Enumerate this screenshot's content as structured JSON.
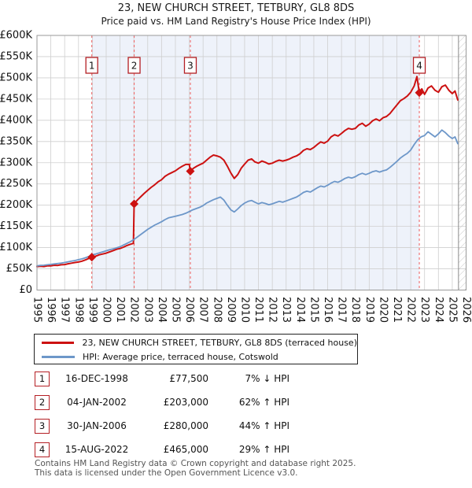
{
  "title": "23, NEW CHURCH STREET, TETBURY, GL8 8DS",
  "subtitle": "Price paid vs. HM Land Registry's House Price Index (HPI)",
  "legend": {
    "items": [
      {
        "label": "23, NEW CHURCH STREET, TETBURY, GL8 8DS (terraced house)",
        "color": "#cc1111"
      },
      {
        "label": "HPI: Average price, terraced house, Cotswold",
        "color": "#6d97c9"
      }
    ]
  },
  "transactions": [
    {
      "badge": "1",
      "date": "16-DEC-1998",
      "price": "£77,500",
      "vs_hpi": "7% ↓ HPI",
      "year": 1998.96,
      "value_k": 77.5
    },
    {
      "badge": "2",
      "date": "04-JAN-2002",
      "price": "£203,000",
      "vs_hpi": "62% ↑ HPI",
      "year": 2002.02,
      "value_k": 203
    },
    {
      "badge": "3",
      "date": "30-JAN-2006",
      "price": "£280,000",
      "vs_hpi": "44% ↑ HPI",
      "year": 2006.08,
      "value_k": 280
    },
    {
      "badge": "4",
      "date": "15-AUG-2022",
      "price": "£465,000",
      "vs_hpi": "29% ↑ HPI",
      "year": 2022.62,
      "value_k": 465
    }
  ],
  "footer": [
    "Contains HM Land Registry data © Crown copyright and database right 2025.",
    "This data is licensed under the Open Government Licence v3.0."
  ],
  "chart_data": {
    "type": "line",
    "unit": "GBP thousands",
    "x_range": [
      1995,
      2026
    ],
    "y_range_k": [
      0,
      600
    ],
    "y_ticks_k": [
      0,
      50,
      100,
      150,
      200,
      250,
      300,
      350,
      400,
      450,
      500,
      550,
      600
    ],
    "y_tick_labels": [
      "£0",
      "£50K",
      "£100K",
      "£150K",
      "£200K",
      "£250K",
      "£300K",
      "£350K",
      "£400K",
      "£450K",
      "£500K",
      "£550K",
      "£600K"
    ],
    "x_ticks": [
      1995,
      1996,
      1997,
      1998,
      1999,
      2000,
      2001,
      2002,
      2003,
      2004,
      2005,
      2006,
      2007,
      2008,
      2009,
      2010,
      2011,
      2012,
      2013,
      2014,
      2015,
      2016,
      2017,
      2018,
      2019,
      2020,
      2021,
      2022,
      2023,
      2024,
      2025,
      2026
    ],
    "grid": true,
    "legend_position": "below",
    "shade_region": [
      1998.96,
      2022.62
    ],
    "shade_color": "#eef2fa",
    "future_hatch_start": 2025.45,
    "dashed_line_color": "#ee6a6a",
    "marker_color": "#cc1111",
    "sale_markers": [
      {
        "n": "1",
        "x": 1998.96,
        "y_k": 77.5
      },
      {
        "n": "2",
        "x": 2002.02,
        "y_k": 203
      },
      {
        "n": "3",
        "x": 2006.08,
        "y_k": 280
      },
      {
        "n": "4",
        "x": 2022.62,
        "y_k": 465
      }
    ],
    "series": [
      {
        "name": "23, NEW CHURCH STREET, TETBURY, GL8 8DS (terraced house)",
        "color": "#cc1111",
        "width": 2,
        "points": [
          [
            1995,
            55
          ],
          [
            1995.25,
            56
          ],
          [
            1995.5,
            55.5
          ],
          [
            1995.75,
            57
          ],
          [
            1996,
            57
          ],
          [
            1996.25,
            58.5
          ],
          [
            1996.5,
            58
          ],
          [
            1996.75,
            59.5
          ],
          [
            1997,
            60
          ],
          [
            1997.25,
            62
          ],
          [
            1997.5,
            63.5
          ],
          [
            1997.75,
            65
          ],
          [
            1998,
            66
          ],
          [
            1998.25,
            68
          ],
          [
            1998.5,
            71
          ],
          [
            1998.75,
            74.5
          ],
          [
            1998.96,
            77.5
          ],
          [
            1999.25,
            80
          ],
          [
            1999.5,
            83
          ],
          [
            1999.75,
            85
          ],
          [
            2000,
            87
          ],
          [
            2000.25,
            90
          ],
          [
            2000.5,
            93
          ],
          [
            2000.75,
            96
          ],
          [
            2001,
            98
          ],
          [
            2001.25,
            101
          ],
          [
            2001.5,
            105
          ],
          [
            2001.75,
            108
          ],
          [
            2001.97,
            110
          ],
          [
            2002.02,
            203
          ],
          [
            2002.25,
            212
          ],
          [
            2002.5,
            220
          ],
          [
            2002.75,
            228
          ],
          [
            2003,
            235
          ],
          [
            2003.25,
            242
          ],
          [
            2003.5,
            248
          ],
          [
            2003.75,
            255
          ],
          [
            2004,
            260
          ],
          [
            2004.25,
            268
          ],
          [
            2004.5,
            273
          ],
          [
            2004.75,
            277
          ],
          [
            2005,
            281
          ],
          [
            2005.25,
            287
          ],
          [
            2005.5,
            292
          ],
          [
            2005.75,
            296
          ],
          [
            2006,
            296
          ],
          [
            2006.08,
            280
          ],
          [
            2006.3,
            287
          ],
          [
            2006.55,
            292
          ],
          [
            2006.8,
            296
          ],
          [
            2007,
            299
          ],
          [
            2007.25,
            306
          ],
          [
            2007.5,
            313
          ],
          [
            2007.75,
            318
          ],
          [
            2008,
            316
          ],
          [
            2008.25,
            313
          ],
          [
            2008.5,
            306
          ],
          [
            2008.75,
            292
          ],
          [
            2009,
            276
          ],
          [
            2009.25,
            263
          ],
          [
            2009.5,
            272
          ],
          [
            2009.75,
            287
          ],
          [
            2010,
            297
          ],
          [
            2010.25,
            306
          ],
          [
            2010.5,
            309
          ],
          [
            2010.75,
            302
          ],
          [
            2011,
            299
          ],
          [
            2011.25,
            304
          ],
          [
            2011.5,
            301
          ],
          [
            2011.75,
            297
          ],
          [
            2012,
            299
          ],
          [
            2012.25,
            303
          ],
          [
            2012.5,
            306
          ],
          [
            2012.75,
            304
          ],
          [
            2013,
            306
          ],
          [
            2013.25,
            309
          ],
          [
            2013.5,
            313
          ],
          [
            2013.75,
            316
          ],
          [
            2014,
            321
          ],
          [
            2014.25,
            329
          ],
          [
            2014.5,
            333
          ],
          [
            2014.75,
            331
          ],
          [
            2015,
            336
          ],
          [
            2015.25,
            343
          ],
          [
            2015.5,
            349
          ],
          [
            2015.75,
            346
          ],
          [
            2016,
            351
          ],
          [
            2016.25,
            361
          ],
          [
            2016.5,
            366
          ],
          [
            2016.75,
            363
          ],
          [
            2017,
            369
          ],
          [
            2017.25,
            376
          ],
          [
            2017.5,
            381
          ],
          [
            2017.75,
            379
          ],
          [
            2018,
            381
          ],
          [
            2018.25,
            389
          ],
          [
            2018.5,
            393
          ],
          [
            2018.75,
            386
          ],
          [
            2019,
            391
          ],
          [
            2019.25,
            399
          ],
          [
            2019.5,
            403
          ],
          [
            2019.75,
            399
          ],
          [
            2020,
            406
          ],
          [
            2020.25,
            409
          ],
          [
            2020.5,
            416
          ],
          [
            2020.75,
            426
          ],
          [
            2021,
            436
          ],
          [
            2021.25,
            446
          ],
          [
            2021.5,
            451
          ],
          [
            2021.75,
            457
          ],
          [
            2022,
            466
          ],
          [
            2022.25,
            481
          ],
          [
            2022.45,
            503
          ],
          [
            2022.62,
            465
          ],
          [
            2022.8,
            474
          ],
          [
            2023,
            461
          ],
          [
            2023.25,
            476
          ],
          [
            2023.5,
            481
          ],
          [
            2023.75,
            471
          ],
          [
            2024,
            466
          ],
          [
            2024.25,
            479
          ],
          [
            2024.5,
            483
          ],
          [
            2024.75,
            471
          ],
          [
            2025,
            463
          ],
          [
            2025.2,
            469
          ],
          [
            2025.4,
            448
          ]
        ]
      },
      {
        "name": "HPI: Average price, terraced house, Cotswold",
        "color": "#6d97c9",
        "width": 1.8,
        "points": [
          [
            1995,
            57
          ],
          [
            1995.25,
            58
          ],
          [
            1995.5,
            58.5
          ],
          [
            1995.75,
            59.5
          ],
          [
            1996,
            60.5
          ],
          [
            1996.25,
            61.5
          ],
          [
            1996.5,
            62.5
          ],
          [
            1996.75,
            63.5
          ],
          [
            1997,
            65
          ],
          [
            1997.25,
            66.5
          ],
          [
            1997.5,
            68
          ],
          [
            1997.75,
            69.5
          ],
          [
            1998,
            71.5
          ],
          [
            1998.25,
            73.5
          ],
          [
            1998.5,
            76
          ],
          [
            1998.75,
            79
          ],
          [
            1999,
            83
          ],
          [
            1999.25,
            85
          ],
          [
            1999.5,
            87.5
          ],
          [
            1999.75,
            90
          ],
          [
            2000,
            92.5
          ],
          [
            2000.25,
            95
          ],
          [
            2000.5,
            97
          ],
          [
            2000.75,
            99.5
          ],
          [
            2001,
            102
          ],
          [
            2001.25,
            106
          ],
          [
            2001.5,
            110
          ],
          [
            2001.75,
            114
          ],
          [
            2002,
            119
          ],
          [
            2002.25,
            125
          ],
          [
            2002.5,
            131
          ],
          [
            2002.75,
            137
          ],
          [
            2003,
            143
          ],
          [
            2003.25,
            148
          ],
          [
            2003.5,
            153
          ],
          [
            2003.75,
            157
          ],
          [
            2004,
            161
          ],
          [
            2004.25,
            166
          ],
          [
            2004.5,
            170
          ],
          [
            2004.75,
            172
          ],
          [
            2005,
            174
          ],
          [
            2005.25,
            176
          ],
          [
            2005.5,
            178
          ],
          [
            2005.75,
            181
          ],
          [
            2006,
            185
          ],
          [
            2006.25,
            189
          ],
          [
            2006.5,
            192
          ],
          [
            2006.75,
            195
          ],
          [
            2007,
            199
          ],
          [
            2007.25,
            205
          ],
          [
            2007.5,
            209
          ],
          [
            2007.75,
            213
          ],
          [
            2008,
            216
          ],
          [
            2008.25,
            219
          ],
          [
            2008.5,
            212
          ],
          [
            2008.75,
            200
          ],
          [
            2009,
            189
          ],
          [
            2009.25,
            184
          ],
          [
            2009.5,
            191
          ],
          [
            2009.75,
            199
          ],
          [
            2010,
            205
          ],
          [
            2010.25,
            209
          ],
          [
            2010.5,
            211
          ],
          [
            2010.75,
            207
          ],
          [
            2011,
            203
          ],
          [
            2011.25,
            206
          ],
          [
            2011.5,
            204
          ],
          [
            2011.75,
            201
          ],
          [
            2012,
            203
          ],
          [
            2012.25,
            206
          ],
          [
            2012.5,
            209
          ],
          [
            2012.75,
            207
          ],
          [
            2013,
            210
          ],
          [
            2013.25,
            213
          ],
          [
            2013.5,
            216
          ],
          [
            2013.75,
            219
          ],
          [
            2014,
            224
          ],
          [
            2014.25,
            230
          ],
          [
            2014.5,
            233
          ],
          [
            2014.75,
            231
          ],
          [
            2015,
            236
          ],
          [
            2015.25,
            241
          ],
          [
            2015.5,
            245
          ],
          [
            2015.75,
            243
          ],
          [
            2016,
            247
          ],
          [
            2016.25,
            252
          ],
          [
            2016.5,
            256
          ],
          [
            2016.75,
            254
          ],
          [
            2017,
            258
          ],
          [
            2017.25,
            263
          ],
          [
            2017.5,
            266
          ],
          [
            2017.75,
            264
          ],
          [
            2018,
            267
          ],
          [
            2018.25,
            272
          ],
          [
            2018.5,
            275
          ],
          [
            2018.75,
            272
          ],
          [
            2019,
            275
          ],
          [
            2019.25,
            279
          ],
          [
            2019.5,
            281
          ],
          [
            2019.75,
            278
          ],
          [
            2020,
            281
          ],
          [
            2020.25,
            283
          ],
          [
            2020.5,
            289
          ],
          [
            2020.75,
            296
          ],
          [
            2021,
            303
          ],
          [
            2021.25,
            311
          ],
          [
            2021.5,
            317
          ],
          [
            2021.75,
            322
          ],
          [
            2022,
            330
          ],
          [
            2022.25,
            343
          ],
          [
            2022.5,
            354
          ],
          [
            2022.75,
            361
          ],
          [
            2023,
            364
          ],
          [
            2023.25,
            373
          ],
          [
            2023.5,
            367
          ],
          [
            2023.75,
            361
          ],
          [
            2024,
            368
          ],
          [
            2024.25,
            377
          ],
          [
            2024.5,
            371
          ],
          [
            2024.75,
            363
          ],
          [
            2025,
            357
          ],
          [
            2025.2,
            361
          ],
          [
            2025.4,
            345
          ]
        ]
      }
    ]
  }
}
